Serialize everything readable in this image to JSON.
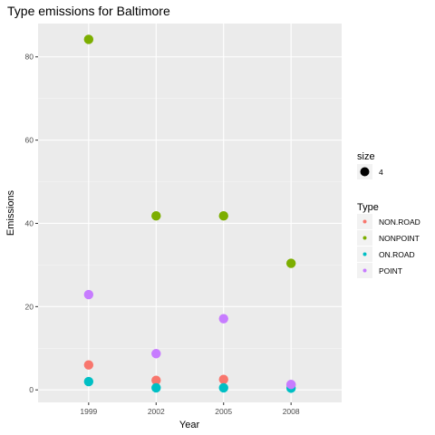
{
  "chart_data": {
    "type": "scatter",
    "title": "Type emissions for Baltimore",
    "xlabel": "Year",
    "ylabel": "Emissions",
    "x": [
      "1999",
      "2002",
      "2005",
      "2008"
    ],
    "yticks": [
      "0",
      "20",
      "40",
      "60",
      "80"
    ],
    "ylim": [
      -3,
      88
    ],
    "grid": true,
    "legend_position": "right",
    "series": [
      {
        "name": "NON.ROAD",
        "color": "#F8766D",
        "values": [
          6.0,
          2.3,
          2.5,
          1.2
        ]
      },
      {
        "name": "NONPOINT",
        "color": "#7CAE00",
        "values": [
          84.2,
          41.8,
          41.8,
          30.4
        ]
      },
      {
        "name": "ON.ROAD",
        "color": "#00BFC4",
        "values": [
          2.0,
          0.5,
          0.5,
          0.4
        ]
      },
      {
        "name": "POINT",
        "color": "#C77CFF",
        "values": [
          22.9,
          8.7,
          17.1,
          1.3
        ]
      }
    ],
    "legends": {
      "size": {
        "title": "size",
        "label": "4"
      },
      "type": {
        "title": "Type"
      }
    }
  }
}
